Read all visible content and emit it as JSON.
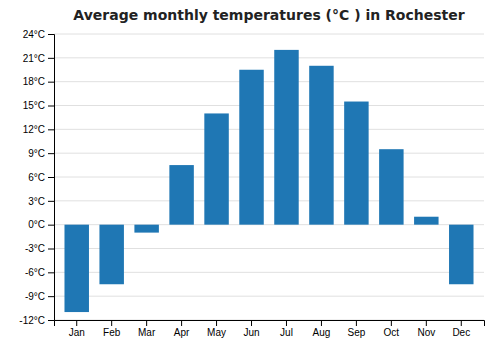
{
  "chart_data": {
    "type": "bar",
    "title": "Average monthly temperatures (°C ) in Rochester",
    "categories": [
      "Jan",
      "Feb",
      "Mar",
      "Apr",
      "May",
      "Jun",
      "Jul",
      "Aug",
      "Sep",
      "Oct",
      "Nov",
      "Dec"
    ],
    "values": [
      -11,
      -7.5,
      -1,
      7.5,
      14,
      19.5,
      22,
      20,
      15.5,
      9.5,
      1,
      -7.5
    ],
    "ylim": [
      -12,
      24
    ],
    "yticks": [
      {
        "value": -12,
        "label": "-12°C"
      },
      {
        "value": -9,
        "label": "-9°C"
      },
      {
        "value": -6,
        "label": "-6°C"
      },
      {
        "value": -3,
        "label": "-3°C"
      },
      {
        "value": 0,
        "label": "0°C"
      },
      {
        "value": 3,
        "label": "3°C"
      },
      {
        "value": 6,
        "label": "6°C"
      },
      {
        "value": 9,
        "label": "9°C"
      },
      {
        "value": 12,
        "label": "12°C"
      },
      {
        "value": 15,
        "label": "15°C"
      },
      {
        "value": 18,
        "label": "18°C"
      },
      {
        "value": 21,
        "label": "21°C"
      },
      {
        "value": 24,
        "label": "24°C"
      }
    ],
    "grid": true
  }
}
